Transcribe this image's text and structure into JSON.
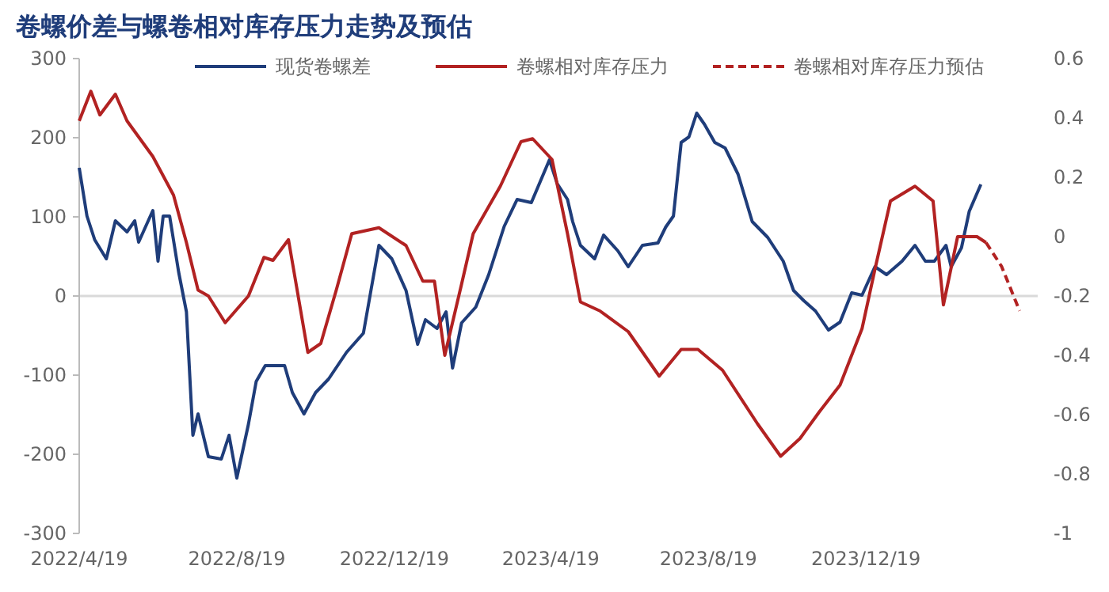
{
  "chart_data": {
    "type": "line",
    "title": "卷螺价差与螺卷相对库存压力走势及预估",
    "legend": "top",
    "grid": false,
    "xlim": [
      "2022-04-19",
      "2024-04-30"
    ],
    "xticks": [
      {
        "value": "2022-04-19",
        "label": "2022/4/19"
      },
      {
        "value": "2022-08-19",
        "label": "2022/8/19"
      },
      {
        "value": "2022-12-19",
        "label": "2022/12/19"
      },
      {
        "value": "2023-04-19",
        "label": "2023/4/19"
      },
      {
        "value": "2023-08-19",
        "label": "2023/8/19"
      },
      {
        "value": "2023-12-19",
        "label": "2023/12/19"
      }
    ],
    "ylim": [
      -300,
      300
    ],
    "yticks": [
      -300,
      -200,
      -100,
      0,
      100,
      200,
      300
    ],
    "y2lim": [
      -1,
      0.6
    ],
    "y2ticks": [
      -1,
      -0.8,
      -0.6,
      -0.4,
      -0.2,
      0,
      0.2,
      0.4,
      0.6
    ],
    "ref_lines": [
      {
        "axis": "y",
        "value": 0,
        "color": "#d9d9d9"
      }
    ],
    "series": [
      {
        "name": "现货卷螺差",
        "color": "#1f3d7a",
        "line_style": "solid",
        "x": [
          "2022-04-19",
          "2022-04-25",
          "2022-05-01",
          "2022-05-10",
          "2022-05-17",
          "2022-05-26",
          "2022-06-01",
          "2022-06-04",
          "2022-06-15",
          "2022-06-19",
          "2022-06-23",
          "2022-06-28",
          "2022-07-05",
          "2022-07-11",
          "2022-07-16",
          "2022-07-20",
          "2022-07-28",
          "2022-08-07",
          "2022-08-13",
          "2022-08-19",
          "2022-08-28",
          "2022-09-03",
          "2022-09-10",
          "2022-09-25",
          "2022-10-01",
          "2022-10-10",
          "2022-10-19",
          "2022-10-29",
          "2022-11-12",
          "2022-11-25",
          "2022-12-07",
          "2022-12-17",
          "2022-12-28",
          "2023-01-06",
          "2023-01-12",
          "2023-01-21",
          "2023-01-28",
          "2023-02-02",
          "2023-02-09",
          "2023-02-20",
          "2023-03-02",
          "2023-03-14",
          "2023-03-24",
          "2023-04-04",
          "2023-04-18",
          "2023-04-24",
          "2023-05-02",
          "2023-05-06",
          "2023-05-12",
          "2023-05-23",
          "2023-05-30",
          "2023-06-10",
          "2023-06-18",
          "2023-06-29",
          "2023-07-11",
          "2023-07-17",
          "2023-07-23",
          "2023-07-29",
          "2023-08-04",
          "2023-08-10",
          "2023-08-16",
          "2023-08-24",
          "2023-09-01",
          "2023-09-11",
          "2023-09-22",
          "2023-10-04",
          "2023-10-16",
          "2023-10-24",
          "2023-11-01",
          "2023-11-10",
          "2023-11-20",
          "2023-11-29",
          "2023-12-08",
          "2023-12-16",
          "2023-12-26",
          "2024-01-04",
          "2024-01-16",
          "2024-01-26",
          "2024-02-03",
          "2024-02-10",
          "2024-02-19",
          "2024-02-23",
          "2024-03-02",
          "2024-03-08",
          "2024-03-17"
        ],
        "values": [
          162,
          101,
          71,
          47,
          95,
          81,
          95,
          68,
          108,
          44,
          101,
          101,
          30,
          -20,
          -176,
          -149,
          -203,
          -206,
          -176,
          -230,
          -162,
          -108,
          -88,
          -88,
          -122,
          -149,
          -122,
          -105,
          -71,
          -47,
          64,
          47,
          7,
          -61,
          -30,
          -41,
          -20,
          -91,
          -34,
          -14,
          27,
          88,
          122,
          118,
          172,
          142,
          122,
          94,
          64,
          47,
          77,
          57,
          37,
          64,
          67,
          87,
          101,
          194,
          201,
          231,
          217,
          194,
          187,
          154,
          94,
          74,
          44,
          7,
          -6,
          -19,
          -43,
          -33,
          4,
          1,
          37,
          27,
          44,
          64,
          44,
          44,
          64,
          37,
          61,
          107,
          141
        ]
      },
      {
        "name": "卷螺相对库存压力",
        "color": "#b22222",
        "axis": "y2",
        "line_style": "solid",
        "x": [
          "2022-04-19",
          "2022-04-28",
          "2022-05-05",
          "2022-05-17",
          "2022-05-26",
          "2022-06-15",
          "2022-07-01",
          "2022-07-11",
          "2022-07-20",
          "2022-07-28",
          "2022-08-10",
          "2022-08-28",
          "2022-09-09",
          "2022-09-16",
          "2022-09-28",
          "2022-10-13",
          "2022-10-23",
          "2022-11-04",
          "2022-11-16",
          "2022-12-07",
          "2022-12-28",
          "2023-01-10",
          "2023-01-19",
          "2023-01-27",
          "2023-02-09",
          "2023-02-18",
          "2023-03-11",
          "2023-03-27",
          "2023-04-05",
          "2023-04-20",
          "2023-05-02",
          "2023-05-12",
          "2023-05-27",
          "2023-06-18",
          "2023-07-12",
          "2023-07-29",
          "2023-08-11",
          "2023-08-30",
          "2023-09-26",
          "2023-10-14",
          "2023-10-29",
          "2023-11-13",
          "2023-11-29",
          "2023-12-16",
          "2023-12-26",
          "2024-01-07",
          "2024-01-26",
          "2024-02-09",
          "2024-02-17",
          "2024-02-28",
          "2024-03-14",
          "2024-03-21"
        ],
        "values": [
          0.39,
          0.49,
          0.41,
          0.48,
          0.39,
          0.27,
          0.14,
          -0.02,
          -0.18,
          -0.2,
          -0.29,
          -0.2,
          -0.07,
          -0.08,
          -0.01,
          -0.39,
          -0.36,
          -0.18,
          0.01,
          0.03,
          -0.03,
          -0.15,
          -0.15,
          -0.4,
          -0.16,
          0.01,
          0.17,
          0.32,
          0.33,
          0.26,
          0.01,
          -0.22,
          -0.25,
          -0.32,
          -0.47,
          -0.38,
          -0.38,
          -0.45,
          -0.63,
          -0.74,
          -0.68,
          -0.59,
          -0.5,
          -0.31,
          -0.11,
          0.12,
          0.17,
          0.12,
          -0.23,
          0,
          0,
          -0.02
        ]
      },
      {
        "name": "卷螺相对库存压力预估",
        "color": "#b22222",
        "axis": "y2",
        "line_style": "dashed",
        "x": [
          "2024-03-21",
          "2024-04-02",
          "2024-04-16"
        ],
        "values": [
          -0.02,
          -0.1,
          -0.25
        ]
      }
    ]
  }
}
